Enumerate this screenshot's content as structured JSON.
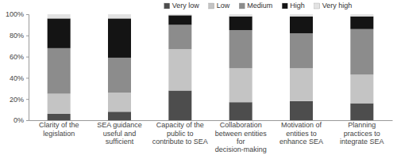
{
  "chart_data": {
    "type": "bar",
    "stacked": true,
    "grid": false,
    "legend": "top",
    "categories": [
      "Clarity of the legislation",
      "SEA guidance useful and sufficient",
      "Capacity of the public to contribute to SEA",
      "Collaboration between entities for decision-making",
      "Motivation of entities to enhance SEA",
      "Planning practices to integrate SEA"
    ],
    "series": [
      {
        "name": "Very low",
        "color": "#4d4d4d",
        "values": [
          6,
          8,
          28,
          17,
          18,
          16
        ]
      },
      {
        "name": "Low",
        "color": "#c4c4c4",
        "values": [
          19,
          18,
          39,
          32,
          31,
          27
        ]
      },
      {
        "name": "Medium",
        "color": "#8c8c8c",
        "values": [
          43,
          33,
          23,
          36,
          33,
          43
        ]
      },
      {
        "name": "High",
        "color": "#141414",
        "values": [
          28,
          37,
          9,
          13,
          16,
          12
        ]
      },
      {
        "name": "Very high",
        "color": "#e3e3e3",
        "values": [
          4,
          4,
          1,
          2,
          2,
          2
        ]
      }
    ],
    "ylim": [
      0,
      100
    ],
    "yticks": [
      {
        "value": 0,
        "label": "0%"
      },
      {
        "value": 20,
        "label": "20%"
      },
      {
        "value": 40,
        "label": "40%"
      },
      {
        "value": 60,
        "label": "60%"
      },
      {
        "value": 80,
        "label": "80%"
      },
      {
        "value": 100,
        "label": "100%"
      }
    ]
  }
}
